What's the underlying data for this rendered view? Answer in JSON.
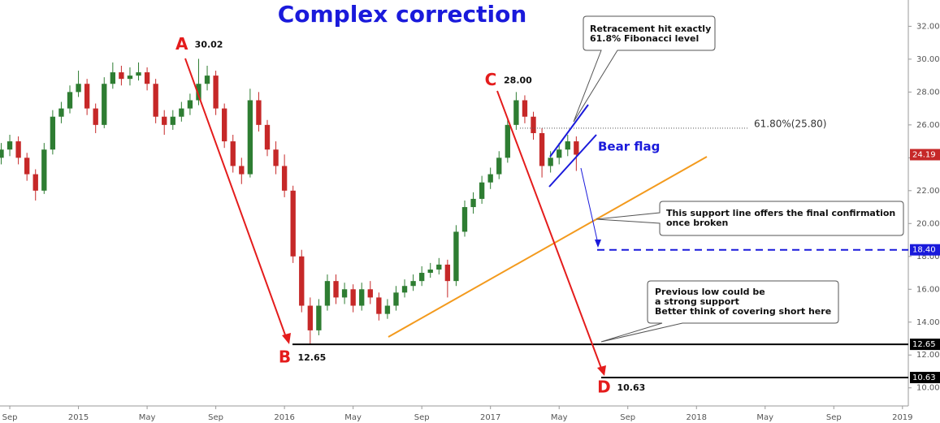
{
  "chart_data": {
    "type": "candlestick",
    "title": "Complex correction",
    "x": [
      -0.5,
      0,
      0.5,
      1,
      1.5,
      2,
      2.5,
      3,
      3.5,
      4,
      4.5,
      5,
      5.5,
      6,
      6.5,
      7,
      7.5,
      8,
      8.5,
      9,
      9.5,
      10,
      10.5,
      11,
      11.5,
      12,
      12.5,
      13,
      13.5,
      14,
      14.5,
      15,
      15.5,
      16,
      16.5,
      17,
      17.5,
      18,
      18.5,
      19,
      19.5,
      20,
      20.5,
      21,
      21.5,
      22,
      22.5,
      23,
      23.5,
      24,
      24.5,
      25,
      25.5,
      26,
      26.5,
      27,
      27.5,
      28,
      28.5,
      29,
      29.5,
      30,
      30.5,
      31,
      31.5,
      32,
      32.5,
      33
    ],
    "candles": [
      [
        24.0,
        24.9,
        23.6,
        24.5
      ],
      [
        24.5,
        25.4,
        24.1,
        25
      ],
      [
        25,
        25.3,
        23.6,
        24
      ],
      [
        24,
        24.3,
        22.6,
        23
      ],
      [
        23,
        23.3,
        21.4,
        22
      ],
      [
        22,
        24.9,
        21.8,
        24.5
      ],
      [
        24.5,
        26.9,
        24.2,
        26.5
      ],
      [
        26.5,
        27.4,
        26.1,
        27
      ],
      [
        27,
        28.4,
        26.7,
        28
      ],
      [
        28,
        29.3,
        27.7,
        28.5
      ],
      [
        28.5,
        28.8,
        26.6,
        27
      ],
      [
        27,
        27.3,
        25.5,
        26
      ],
      [
        26,
        28.9,
        25.8,
        28.5
      ],
      [
        28.5,
        29.8,
        28.2,
        29.2
      ],
      [
        29.2,
        29.6,
        28.4,
        28.8
      ],
      [
        28.8,
        29.5,
        28.4,
        29
      ],
      [
        29,
        29.8,
        28.7,
        29.2
      ],
      [
        29.2,
        29.5,
        28.1,
        28.5
      ],
      [
        28.5,
        28.8,
        26.1,
        26.5
      ],
      [
        26.5,
        26.9,
        25.4,
        26
      ],
      [
        26,
        26.9,
        25.7,
        26.5
      ],
      [
        26.5,
        27.4,
        26.2,
        27
      ],
      [
        27,
        27.9,
        26.6,
        27.5
      ],
      [
        27.5,
        30.02,
        27.2,
        28.5
      ],
      [
        28.5,
        29.6,
        28.1,
        29
      ],
      [
        29,
        29.3,
        26.6,
        27
      ],
      [
        27,
        27.3,
        24.6,
        25
      ],
      [
        25,
        25.4,
        23.1,
        23.5
      ],
      [
        23.5,
        24,
        22.4,
        23
      ],
      [
        23,
        28.2,
        22.8,
        27.5
      ],
      [
        27.5,
        28,
        25.6,
        26
      ],
      [
        26,
        26.3,
        24.1,
        24.5
      ],
      [
        24.5,
        25,
        23,
        23.5
      ],
      [
        23.5,
        24.2,
        21.6,
        22
      ],
      [
        22,
        22.3,
        17.6,
        18
      ],
      [
        18,
        18.4,
        14.6,
        15
      ],
      [
        15,
        15.5,
        12.65,
        13.5
      ],
      [
        13.5,
        15.4,
        13.2,
        15
      ],
      [
        15,
        16.9,
        14.7,
        16.5
      ],
      [
        16.5,
        16.9,
        15.1,
        15.5
      ],
      [
        15.5,
        16.4,
        15.1,
        16
      ],
      [
        16,
        16.3,
        14.6,
        15
      ],
      [
        15,
        16.4,
        14.7,
        16
      ],
      [
        16,
        16.5,
        15.1,
        15.5
      ],
      [
        15.5,
        15.8,
        14.1,
        14.5
      ],
      [
        14.5,
        15.4,
        14.2,
        15
      ],
      [
        15,
        16.2,
        14.7,
        15.8
      ],
      [
        15.8,
        16.6,
        15.5,
        16.2
      ],
      [
        16.2,
        16.9,
        15.9,
        16.5
      ],
      [
        16.5,
        17.4,
        16.2,
        17
      ],
      [
        17,
        17.6,
        16.7,
        17.2
      ],
      [
        17.2,
        17.9,
        16.9,
        17.5
      ],
      [
        17.5,
        17.8,
        15.5,
        16.5
      ],
      [
        16.5,
        19.9,
        16.2,
        19.5
      ],
      [
        19.5,
        21.4,
        19.2,
        21
      ],
      [
        21,
        21.9,
        20.6,
        21.5
      ],
      [
        21.5,
        22.9,
        21.2,
        22.5
      ],
      [
        22.5,
        23.4,
        22.1,
        23
      ],
      [
        23,
        24.4,
        22.7,
        24
      ],
      [
        24,
        26.4,
        23.7,
        26
      ],
      [
        26,
        28,
        25.7,
        27.5
      ],
      [
        27.5,
        27.8,
        26.1,
        26.5
      ],
      [
        26.5,
        26.8,
        25.1,
        25.5
      ],
      [
        25.5,
        25.8,
        22.8,
        23.5
      ],
      [
        23.5,
        24.4,
        23.1,
        24
      ],
      [
        24,
        24.9,
        23.6,
        24.5
      ],
      [
        24.5,
        25.4,
        24.1,
        25
      ],
      [
        25,
        25.3,
        23.2,
        24.19
      ]
    ],
    "up_color": "#2e7d32",
    "down_color": "#c62828",
    "xlim": [
      -0.57,
      52.34
    ],
    "ylim": [
      8.9,
      33.6
    ],
    "xticks": [
      {
        "value": 0,
        "label": "Sep"
      },
      {
        "value": 4,
        "label": "2015"
      },
      {
        "value": 8,
        "label": "May"
      },
      {
        "value": 12,
        "label": "Sep"
      },
      {
        "value": 16,
        "label": "2016"
      },
      {
        "value": 20,
        "label": "May"
      },
      {
        "value": 24,
        "label": "Sep"
      },
      {
        "value": 28,
        "label": "2017"
      },
      {
        "value": 32,
        "label": "May"
      },
      {
        "value": 36,
        "label": "Sep"
      },
      {
        "value": 40,
        "label": "2018"
      },
      {
        "value": 44,
        "label": "May"
      },
      {
        "value": 48,
        "label": "Sep"
      },
      {
        "value": 52,
        "label": "2019"
      }
    ],
    "yticks": [
      {
        "value": 10,
        "label": "10.00"
      },
      {
        "value": 12,
        "label": "12.00"
      },
      {
        "value": 14,
        "label": "14.00"
      },
      {
        "value": 16,
        "label": "16.00"
      },
      {
        "value": 18,
        "label": "18.00"
      },
      {
        "value": 20,
        "label": "20.00"
      },
      {
        "value": 22,
        "label": "22.00"
      },
      {
        "value": 24,
        "label": "24.00"
      },
      {
        "value": 26,
        "label": "26.00"
      },
      {
        "value": 28,
        "label": "28.00"
      },
      {
        "value": 30,
        "label": "30.00"
      },
      {
        "value": 32,
        "label": "32.00"
      }
    ],
    "waves": {
      "labels": [
        "A",
        "B",
        "C",
        "D"
      ],
      "x": [
        10.3,
        16.3,
        28.3,
        34.9
      ],
      "values": [
        30.02,
        12.65,
        28,
        10.63
      ],
      "value_labels": [
        "30.02",
        "12.65",
        "28.00",
        "10.63"
      ]
    },
    "levels": [
      {
        "value": 24.19,
        "label": "24.19",
        "color": "#c62828"
      },
      {
        "value": 18.4,
        "label": "18.40",
        "color": "#1a1adb"
      },
      {
        "value": 12.65,
        "label": "12.65",
        "color": "#000000"
      },
      {
        "value": 10.63,
        "label": "10.63",
        "color": "#000000"
      }
    ],
    "fibonacci": {
      "value": 25.8,
      "label": "61.80%(25.80)"
    },
    "annotations": {
      "bear_flag": "Bear flag",
      "retracement": [
        "Retracement hit exactly",
        "61.8% Fibonacci level"
      ],
      "support": [
        "This support line offers the final confirmation",
        "once broken"
      ],
      "previous_low": [
        "Previous low could be",
        "a strong support",
        "Better think of covering short here"
      ]
    }
  }
}
